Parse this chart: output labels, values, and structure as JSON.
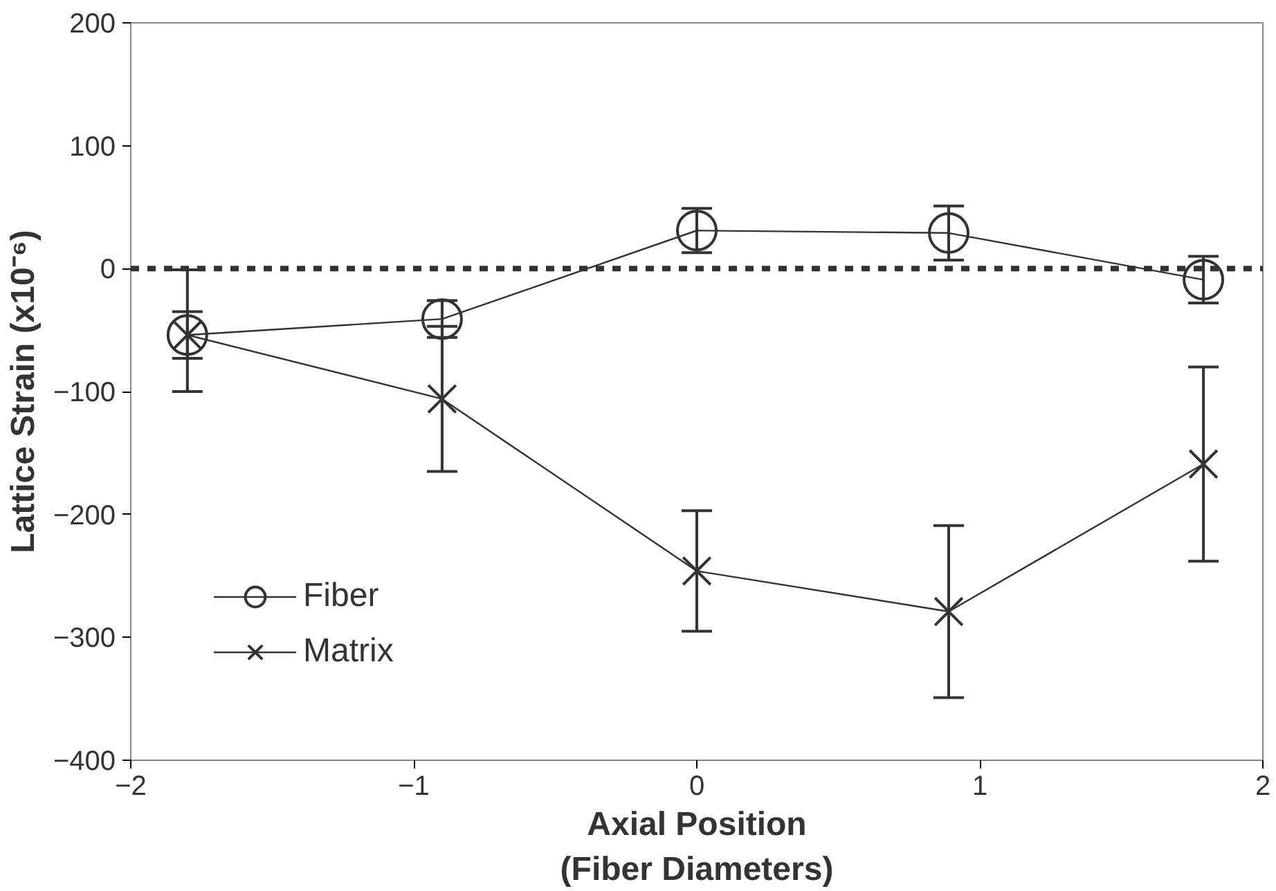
{
  "chart_data": {
    "type": "line",
    "xlabel": "Axial Position\n(Fiber Diameters)",
    "ylabel": "Lattice Strain (x10⁻⁶)",
    "x": [
      -1.8,
      -0.9,
      0,
      0.89,
      1.79
    ],
    "series": [
      {
        "name": "Fiber",
        "color": "#333333",
        "marker": "circle",
        "values": [
          -54,
          -41,
          31,
          29,
          -9
        ],
        "errors": [
          19,
          15,
          18,
          22,
          19
        ]
      },
      {
        "name": "Matrix",
        "color": "#333333",
        "marker": "cross",
        "values": [
          -54,
          -106,
          -246,
          -279,
          -159
        ],
        "errors": [
          [
            -100,
            -1
          ],
          59,
          49,
          70,
          79
        ]
      }
    ],
    "xlim": [
      -2,
      2
    ],
    "xticks": [
      -2,
      -1,
      0,
      1,
      2
    ],
    "ylim": [
      -400,
      200
    ],
    "yticks": [
      -400,
      -300,
      -200,
      -100,
      0,
      100,
      200
    ],
    "ref_lines": [
      {
        "axis": "y",
        "value": 0,
        "line_style": "dashed",
        "color": "#333333"
      }
    ],
    "grid": false,
    "legend": "bottom left",
    "line_style": "solid"
  }
}
